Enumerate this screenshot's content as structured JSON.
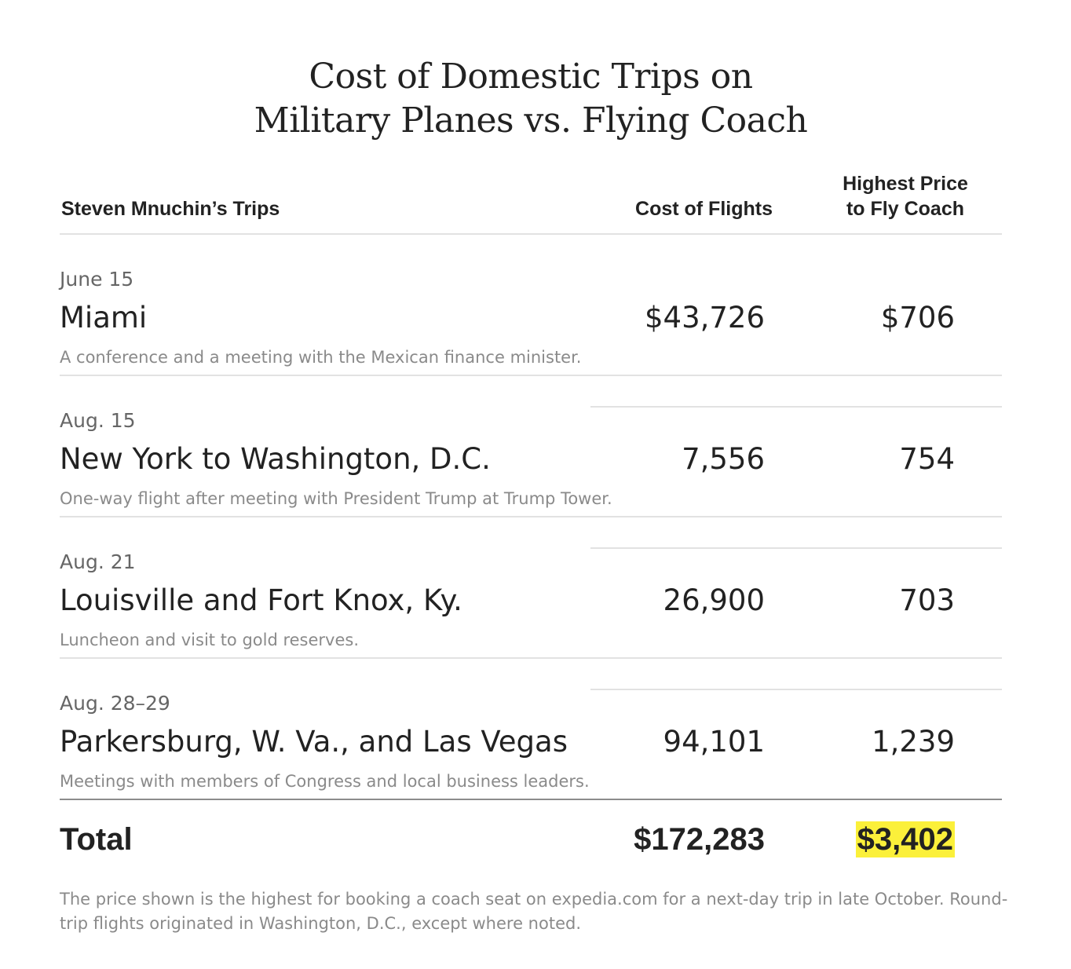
{
  "title_line1": "Cost of Domestic Trips on",
  "title_line2": "Military Planes vs. Flying Coach",
  "headers": {
    "trips": "Steven Mnuchin’s Trips",
    "cost": "Cost of Flights",
    "coach_line1": "Highest Price",
    "coach_line2": "to Fly Coach"
  },
  "trips": [
    {
      "date": "June 15",
      "place": "Miami",
      "note": "A conference and a meeting with the Mexican finance minister.",
      "cost": "$43,726",
      "coach": "$706"
    },
    {
      "date": "Aug. 15",
      "place": "New York to Washington, D.C.",
      "note": "One-way flight after meeting with President Trump at Trump Tower.",
      "cost": "7,556",
      "coach": "754"
    },
    {
      "date": "Aug. 21",
      "place": "Louisville and Fort Knox, Ky.",
      "note": "Luncheon and visit to gold reserves.",
      "cost": "26,900",
      "coach": "703"
    },
    {
      "date": "Aug. 28–29",
      "place": "Parkersburg, W. Va., and Las Vegas",
      "note": "Meetings with members of Congress and local business leaders.",
      "cost": "94,101",
      "coach": "1,239"
    }
  ],
  "total": {
    "label": "Total",
    "cost": "$172,283",
    "coach": "$3,402"
  },
  "footnote": "The price shown is the highest for booking a coach seat on expedia.com for a next-day trip in late October. Round-trip flights originated in Washington, D.C., except where noted.",
  "colors": {
    "highlight": "#fbf03a",
    "text": "#222222",
    "muted": "#8a8a8a",
    "rule": "#e2e2e2"
  },
  "chart_data": {
    "type": "table",
    "title": "Cost of Domestic Trips on Military Planes vs. Flying Coach",
    "columns": [
      "Steven Mnuchin’s Trips",
      "Cost of Flights",
      "Highest Price to Fly Coach"
    ],
    "rows": [
      {
        "date": "June 15",
        "trip": "Miami",
        "cost_of_flights": 43726,
        "highest_coach_price": 706
      },
      {
        "date": "Aug. 15",
        "trip": "New York to Washington, D.C.",
        "cost_of_flights": 7556,
        "highest_coach_price": 754
      },
      {
        "date": "Aug. 21",
        "trip": "Louisville and Fort Knox, Ky.",
        "cost_of_flights": 26900,
        "highest_coach_price": 703
      },
      {
        "date": "Aug. 28–29",
        "trip": "Parkersburg, W. Va., and Las Vegas",
        "cost_of_flights": 94101,
        "highest_coach_price": 1239
      }
    ],
    "totals": {
      "cost_of_flights": 172283,
      "highest_coach_price": 3402
    }
  }
}
